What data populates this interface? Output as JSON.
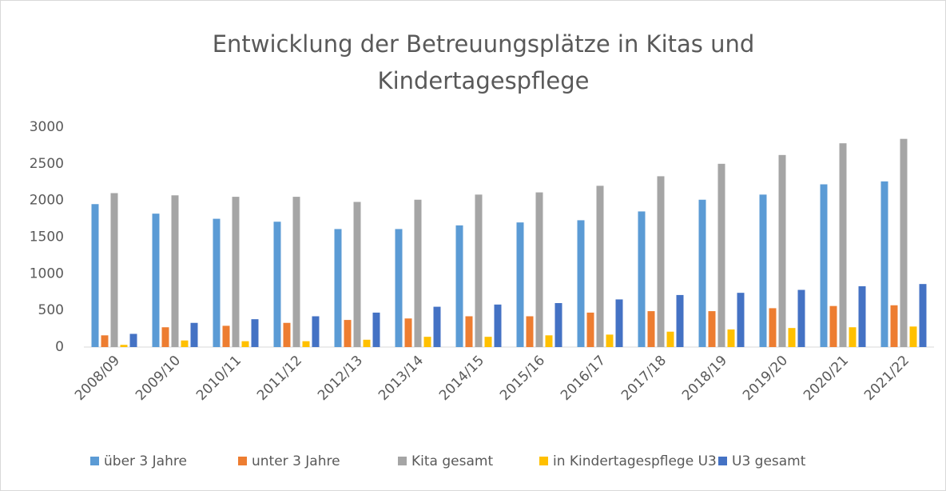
{
  "chart_data": {
    "type": "bar",
    "title": [
      "Entwicklung der Betreuungsplätze in Kitas und",
      "Kindertagespflege"
    ],
    "categories": [
      "2008/09",
      "2009/10",
      "2010/11",
      "2011/12",
      "2012/13",
      "2013/14",
      "2014/15",
      "2015/16",
      "2016/17",
      "2017/18",
      "2018/19",
      "2019/20",
      "2020/21",
      "2021/22"
    ],
    "series": [
      {
        "name": "über 3 Jahre",
        "color": "#5b9bd5",
        "values": [
          1950,
          1820,
          1750,
          1710,
          1610,
          1610,
          1660,
          1700,
          1730,
          1850,
          2010,
          2080,
          2220,
          2260
        ]
      },
      {
        "name": "unter 3 Jahre",
        "color": "#ed7d31",
        "values": [
          160,
          270,
          290,
          330,
          370,
          390,
          420,
          420,
          470,
          490,
          490,
          530,
          560,
          570
        ]
      },
      {
        "name": "Kita gesamt",
        "color": "#a5a5a5",
        "values": [
          2100,
          2070,
          2050,
          2050,
          1980,
          2010,
          2080,
          2110,
          2200,
          2330,
          2500,
          2620,
          2780,
          2840
        ]
      },
      {
        "name": "in Kindertagespflege U3",
        "color": "#ffc000",
        "values": [
          30,
          90,
          80,
          80,
          100,
          140,
          140,
          160,
          170,
          210,
          240,
          260,
          270,
          280
        ]
      },
      {
        "name": "U3 gesamt",
        "color": "#4472c4",
        "values": [
          180,
          330,
          380,
          420,
          470,
          550,
          580,
          600,
          650,
          710,
          740,
          780,
          830,
          860
        ]
      }
    ],
    "ylim": [
      0,
      3000
    ],
    "yticks": [
      0,
      500,
      1000,
      1500,
      2000,
      2500,
      3000
    ],
    "grid": false,
    "legend": "bottom"
  }
}
